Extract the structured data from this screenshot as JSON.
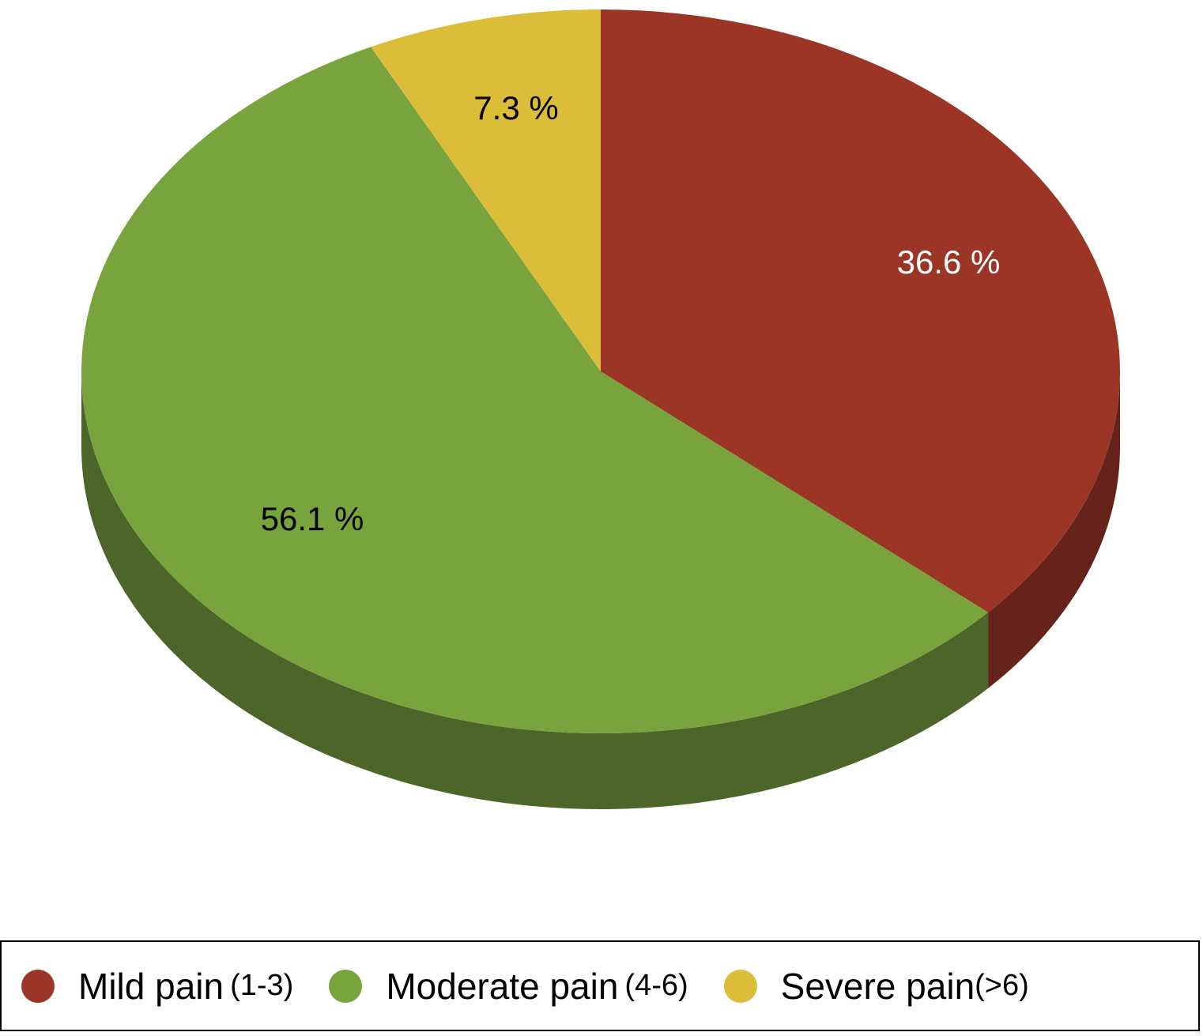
{
  "chart_data": {
    "type": "pie",
    "style": "3d",
    "slices": [
      {
        "category": "Mild pain",
        "range": "(1-3)",
        "value": 36.6,
        "label": "36.6 %",
        "color": "#9b3526",
        "side_color": "#652319",
        "label_color": "#ffffff"
      },
      {
        "category": "Moderate pain",
        "range": "(4-6)",
        "value": 56.1,
        "label": "56.1 %",
        "color": "#79a33c",
        "side_color": "#4c6629",
        "label_color": "#000000"
      },
      {
        "category": "Severe pain",
        "range": "(>6)",
        "value": 7.3,
        "label": "7.3 %",
        "color": "#dcbd3a",
        "side_color": "#a88e2c",
        "label_color": "#000000"
      }
    ],
    "legend_position": "bottom"
  }
}
